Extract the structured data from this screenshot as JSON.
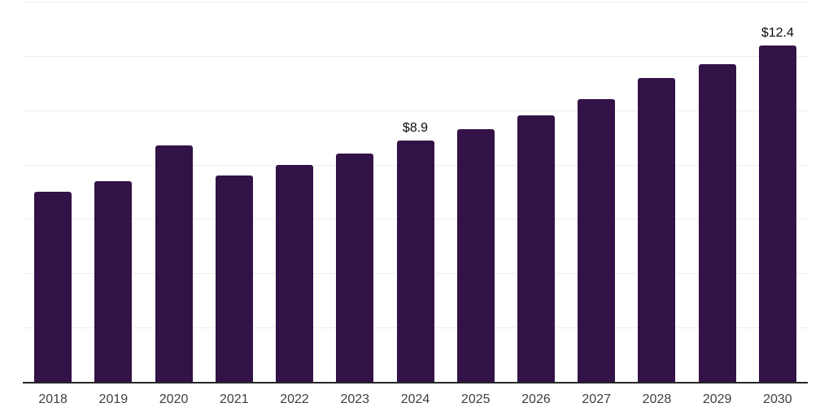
{
  "chart_data": {
    "type": "bar",
    "title": "",
    "xlabel": "",
    "ylabel": "",
    "categories": [
      "2018",
      "2019",
      "2020",
      "2021",
      "2022",
      "2023",
      "2024",
      "2025",
      "2026",
      "2027",
      "2028",
      "2029",
      "2030"
    ],
    "values": [
      7.0,
      7.4,
      8.7,
      7.6,
      8.0,
      8.4,
      8.9,
      9.3,
      9.8,
      10.4,
      11.2,
      11.7,
      12.4
    ],
    "bar_value_labels": [
      "",
      "",
      "",
      "",
      "",
      "",
      "$8.9",
      "",
      "",
      "",
      "",
      "",
      "$12.4"
    ],
    "ylim": [
      0,
      14
    ],
    "gridline_step": 2,
    "grid": "horizontal",
    "legend": "none",
    "y_axis_tick_labels_visible": false,
    "colors": {
      "bar": "#331247",
      "gridline": "#ededed",
      "axis_line": "#262626",
      "tick_label": "#3f3f3f",
      "value_label": "#0a0a0a",
      "background": "#ffffff"
    }
  }
}
